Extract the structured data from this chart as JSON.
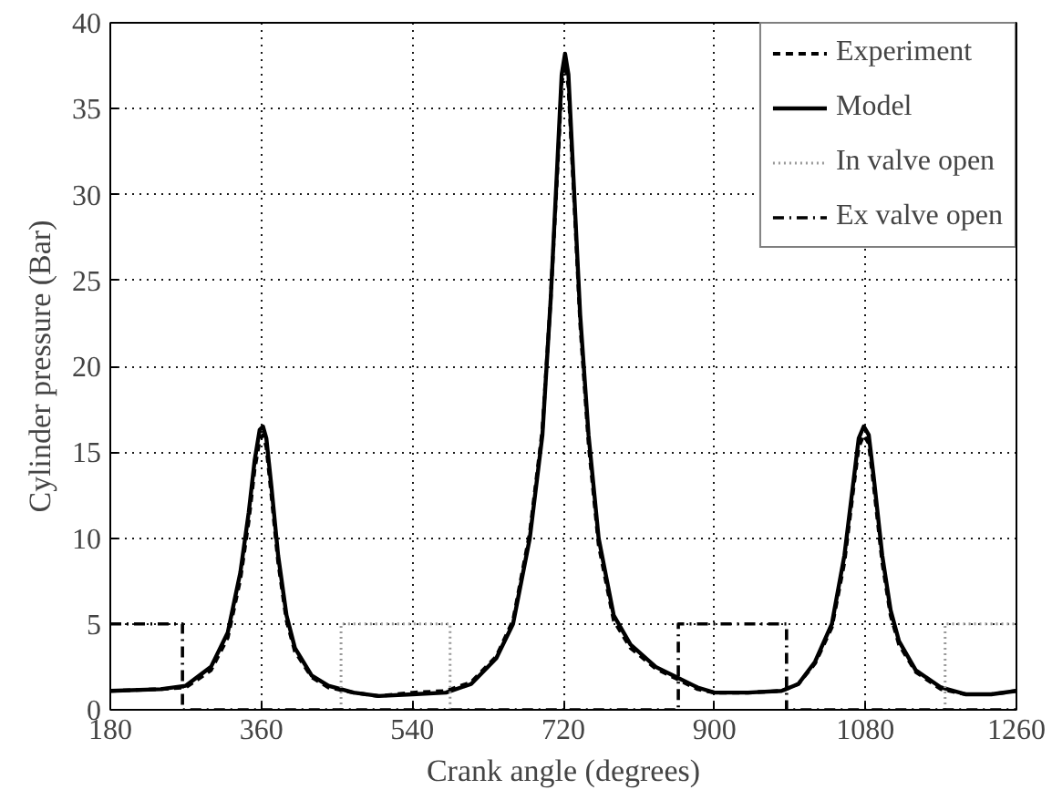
{
  "chart_data": {
    "type": "line",
    "xlabel": "Crank angle (degrees)",
    "ylabel": "Cylinder pressure (Bar)",
    "xlim": [
      180,
      1260
    ],
    "ylim": [
      0,
      40
    ],
    "xticks": [
      180,
      360,
      540,
      720,
      900,
      1080,
      1260
    ],
    "yticks": [
      0,
      5,
      10,
      15,
      20,
      25,
      30,
      35,
      40
    ],
    "grid": true,
    "legend": "top right",
    "marker": "none",
    "series": [
      {
        "name": "Experiment",
        "color": "#000000",
        "line_style": "dashed",
        "x": [
          180,
          240,
          270,
          300,
          320,
          335,
          345,
          352,
          358,
          362,
          366,
          372,
          380,
          390,
          400,
          420,
          440,
          470,
          500,
          540,
          580,
          610,
          640,
          660,
          680,
          695,
          705,
          713,
          718,
          722,
          726,
          732,
          740,
          750,
          762,
          780,
          800,
          830,
          855,
          880,
          900,
          940,
          980,
          1000,
          1020,
          1040,
          1055,
          1065,
          1072,
          1078,
          1084,
          1090,
          1100,
          1110,
          1120,
          1140,
          1170,
          1200,
          1230,
          1260
        ],
        "values": [
          1.1,
          1.2,
          1.3,
          2.3,
          4.2,
          7.6,
          11,
          14,
          15.7,
          16.0,
          15.3,
          12.5,
          8.6,
          5.2,
          3.4,
          1.9,
          1.3,
          1.0,
          0.8,
          1.0,
          1.1,
          1.6,
          3.1,
          5.2,
          10.3,
          16.3,
          24,
          31.5,
          36.5,
          37.6,
          36.3,
          30.5,
          22.5,
          15.5,
          9.6,
          5.2,
          3.6,
          2.4,
          1.8,
          1.2,
          1.0,
          1.0,
          1.1,
          1.5,
          2.7,
          4.8,
          8.6,
          12.6,
          15.3,
          16.0,
          15.5,
          13,
          8.6,
          5.5,
          3.8,
          2.2,
          1.2,
          0.9,
          0.9,
          1.1
        ]
      },
      {
        "name": "Model",
        "color": "#000000",
        "line_style": "solid",
        "x": [
          180,
          240,
          270,
          300,
          320,
          335,
          345,
          352,
          358,
          362,
          366,
          372,
          380,
          390,
          400,
          420,
          440,
          470,
          500,
          540,
          580,
          610,
          640,
          660,
          680,
          695,
          705,
          713,
          718,
          722,
          726,
          732,
          740,
          750,
          762,
          780,
          800,
          830,
          855,
          880,
          900,
          940,
          980,
          1000,
          1020,
          1040,
          1055,
          1065,
          1072,
          1078,
          1084,
          1090,
          1100,
          1110,
          1120,
          1140,
          1170,
          1200,
          1230,
          1260
        ],
        "values": [
          1.1,
          1.2,
          1.4,
          2.5,
          4.5,
          8,
          11.5,
          14.5,
          16.3,
          16.5,
          15.8,
          13,
          9,
          5.5,
          3.6,
          2.0,
          1.4,
          1.0,
          0.8,
          0.9,
          1.0,
          1.5,
          3.0,
          5,
          10,
          16,
          24,
          32,
          37,
          38.2,
          37,
          31,
          23,
          16,
          10,
          5.5,
          3.8,
          2.5,
          1.9,
          1.3,
          1.0,
          1.0,
          1.1,
          1.5,
          2.8,
          5,
          9,
          13,
          15.8,
          16.5,
          16,
          13.5,
          9,
          5.8,
          4.0,
          2.3,
          1.3,
          0.9,
          0.9,
          1.1
        ]
      },
      {
        "name": "In valve open",
        "color": "#999999",
        "line_style": "dotted",
        "x": [
          455,
          455,
          585,
          585,
          880,
          1175,
          1175,
          1260
        ],
        "values": [
          0,
          5,
          5,
          0,
          null,
          0,
          5,
          5
        ]
      },
      {
        "name": "Ex valve open",
        "color": "#000000",
        "line_style": "dashdot",
        "x": [
          180,
          266,
          266,
          857,
          857,
          986,
          986,
          1260
        ],
        "values": [
          5,
          5,
          0,
          0,
          5,
          5,
          0,
          0
        ]
      }
    ]
  }
}
